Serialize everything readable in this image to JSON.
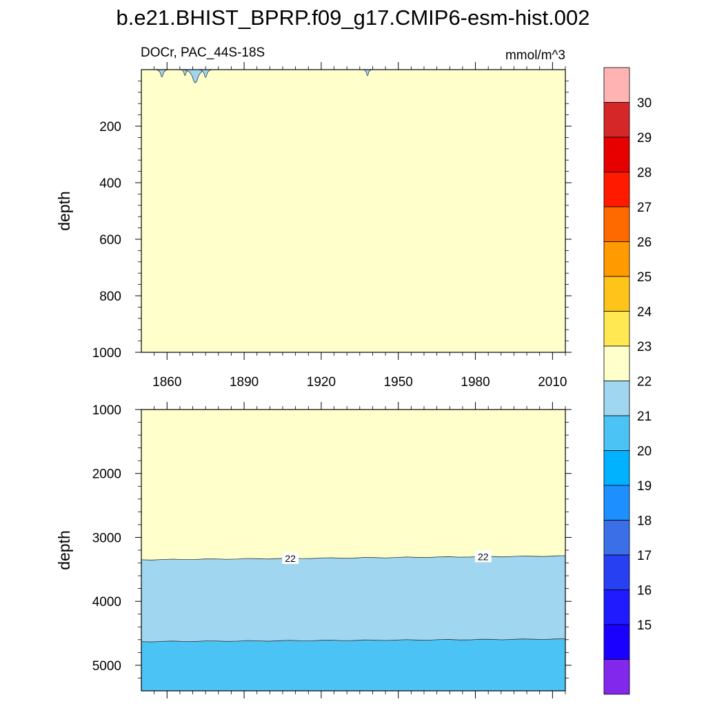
{
  "title": "b.e21.BHIST_BPRP.f09_g17.CMIP6-esm-hist.002",
  "subtitle_left": "DOCr, PAC_44S-18S",
  "subtitle_right": "mmol/m^3",
  "chart_data": [
    {
      "type": "heatmap",
      "panel": "upper",
      "ylabel": "depth",
      "xlim": [
        1850,
        2015
      ],
      "ylim": [
        0,
        1000
      ],
      "y_reversed": true,
      "x_ticks": [
        1860,
        1890,
        1920,
        1950,
        1980,
        2010
      ],
      "y_ticks": [
        200,
        400,
        600,
        800,
        1000
      ],
      "fill_band": {
        "range": "22-23",
        "color": "#ffffcc"
      },
      "dips": [
        {
          "year": 1858,
          "depth_min": 0,
          "depth_max": 28,
          "range": "21-22"
        },
        {
          "year": 1867,
          "depth_min": 0,
          "depth_max": 22,
          "range": "21-22"
        },
        {
          "year": 1871,
          "depth_min": 0,
          "depth_max": 55,
          "range": "21-22"
        },
        {
          "year": 1875,
          "depth_min": 0,
          "depth_max": 30,
          "range": "21-22"
        },
        {
          "year": 1938,
          "depth_min": 0,
          "depth_max": 22,
          "range": "21-22"
        }
      ]
    },
    {
      "type": "heatmap",
      "panel": "lower",
      "ylabel": "depth",
      "xlim": [
        1850,
        2015
      ],
      "ylim": [
        1000,
        5400
      ],
      "y_reversed": true,
      "y_ticks": [
        1000,
        2000,
        3000,
        4000,
        5000
      ],
      "contour_labels": [
        {
          "text": "22",
          "year": 1908
        },
        {
          "text": "22",
          "year": 1983
        }
      ],
      "bands": [
        {
          "range": "22-23",
          "color": "#ffffcc",
          "depth_top": 1000,
          "depth_bottom_start": 3350,
          "depth_bottom_end": 3290
        },
        {
          "range": "21-22",
          "color": "#a0d6f0",
          "depth_top_start": 3350,
          "depth_top_end": 3290,
          "depth_bottom_start": 4630,
          "depth_bottom_end": 4590
        },
        {
          "range": "20-21",
          "color": "#4cc3f5",
          "depth_top_start": 4630,
          "depth_top_end": 4590,
          "depth_bottom": 5400
        }
      ]
    },
    {
      "type": "colorbar",
      "labels": [
        "30",
        "29",
        "28",
        "27",
        "26",
        "25",
        "24",
        "23",
        "22",
        "21",
        "20",
        "19",
        "18",
        "17",
        "16",
        "15"
      ],
      "colors": [
        "#ffb3b3",
        "#d62728",
        "#e60000",
        "#ff1a00",
        "#ff6a00",
        "#ff9a00",
        "#ffc41a",
        "#ffe852",
        "#ffffcc",
        "#a0d6f0",
        "#4cc3f5",
        "#00b2ff",
        "#1e8fff",
        "#3a6fe8",
        "#2640f2",
        "#1f1aff",
        "#1a00ff",
        "#8228ec"
      ]
    }
  ]
}
